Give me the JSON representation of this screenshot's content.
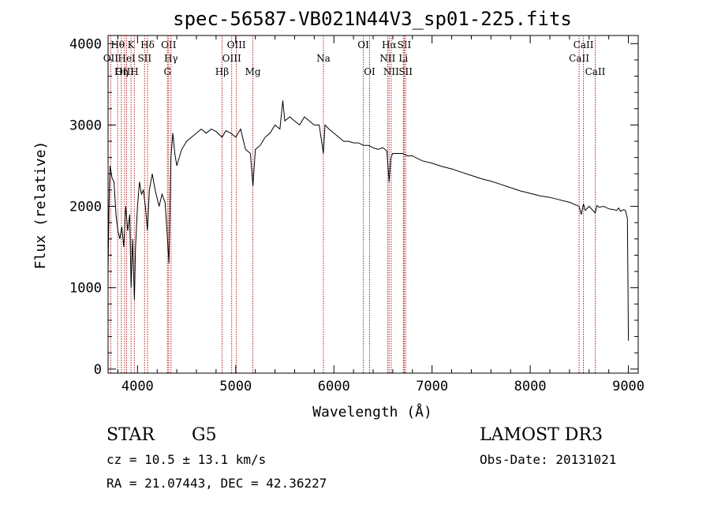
{
  "chart_data": {
    "type": "line",
    "title": "spec-56587-VB021N44V3_sp01-225.fits",
    "xlabel": "Wavelength (Å)",
    "ylabel": "Flux (relative)",
    "xlim": [
      3700,
      9100
    ],
    "ylim": [
      -50,
      4100
    ],
    "xticks": [
      4000,
      5000,
      6000,
      7000,
      8000,
      9000
    ],
    "yticks": [
      0,
      1000,
      2000,
      3000,
      4000
    ],
    "xtick_labels": [
      "4000",
      "5000",
      "6000",
      "7000",
      "8000",
      "9000"
    ],
    "ytick_labels": [
      "0",
      "1000",
      "2000",
      "3000",
      "4000"
    ],
    "series": [
      {
        "name": "spectrum",
        "x": [
          3700,
          3710,
          3720,
          3740,
          3760,
          3780,
          3800,
          3820,
          3840,
          3860,
          3880,
          3900,
          3920,
          3935,
          3950,
          3968,
          3980,
          4000,
          4020,
          4040,
          4060,
          4080,
          4101,
          4120,
          4150,
          4180,
          4200,
          4220,
          4250,
          4280,
          4300,
          4320,
          4340,
          4360,
          4380,
          4400,
          4450,
          4500,
          4550,
          4600,
          4650,
          4700,
          4750,
          4800,
          4861,
          4900,
          4950,
          5000,
          5050,
          5100,
          5150,
          5175,
          5200,
          5250,
          5300,
          5350,
          5400,
          5450,
          5480,
          5500,
          5550,
          5600,
          5650,
          5700,
          5750,
          5800,
          5850,
          5893,
          5910,
          5950,
          6000,
          6050,
          6100,
          6150,
          6200,
          6250,
          6300,
          6350,
          6400,
          6450,
          6500,
          6540,
          6563,
          6580,
          6600,
          6650,
          6700,
          6750,
          6800,
          6900,
          7000,
          7100,
          7200,
          7300,
          7400,
          7500,
          7600,
          7700,
          7800,
          7900,
          8000,
          8100,
          8200,
          8300,
          8400,
          8498,
          8520,
          8542,
          8560,
          8600,
          8662,
          8680,
          8700,
          8750,
          8800,
          8850,
          8880,
          8900,
          8920,
          8950,
          8970,
          8990,
          9000
        ],
        "y": [
          1200,
          2000,
          2500,
          2350,
          2300,
          1900,
          1700,
          1600,
          1750,
          1500,
          2000,
          1700,
          1900,
          1000,
          1600,
          850,
          1500,
          2000,
          2300,
          2150,
          2200,
          2000,
          1700,
          2200,
          2400,
          2200,
          2100,
          2000,
          2150,
          2050,
          1700,
          1300,
          2600,
          2900,
          2650,
          2500,
          2700,
          2800,
          2850,
          2900,
          2950,
          2900,
          2950,
          2920,
          2850,
          2930,
          2900,
          2850,
          2950,
          2700,
          2650,
          2250,
          2700,
          2750,
          2850,
          2900,
          3000,
          2950,
          3300,
          3050,
          3100,
          3050,
          3000,
          3100,
          3050,
          3000,
          3000,
          2650,
          3000,
          2950,
          2900,
          2850,
          2800,
          2800,
          2780,
          2780,
          2750,
          2750,
          2720,
          2700,
          2720,
          2680,
          2300,
          2600,
          2650,
          2650,
          2650,
          2620,
          2620,
          2560,
          2530,
          2490,
          2460,
          2420,
          2380,
          2340,
          2310,
          2270,
          2230,
          2190,
          2160,
          2130,
          2110,
          2080,
          2050,
          2000,
          1900,
          2030,
          1950,
          2000,
          1920,
          2010,
          1990,
          2000,
          1970,
          1960,
          1950,
          1980,
          1940,
          1960,
          1950,
          1850,
          350
        ]
      }
    ],
    "lines": [
      {
        "label": "Hθ",
        "wl": 3798,
        "row": 0
      },
      {
        "label": "OII",
        "wl": 3727,
        "row": 1
      },
      {
        "label": "OIII",
        "wl": 3869,
        "row": 2
      },
      {
        "label": "K",
        "wl": 3934,
        "row": 0
      },
      {
        "label": "HeI",
        "wl": 3889,
        "row": 1
      },
      {
        "label": "Hη",
        "wl": 3835,
        "row": 2
      },
      {
        "label": "Hδ",
        "wl": 4102,
        "row": 0
      },
      {
        "label": "SII",
        "wl": 4072,
        "row": 1
      },
      {
        "label": "H",
        "wl": 3968,
        "row": 2
      },
      {
        "label": "OII",
        "wl": 4317,
        "row": 0
      },
      {
        "label": "Hγ",
        "wl": 4341,
        "row": 1
      },
      {
        "label": "G",
        "wl": 4305,
        "row": 2
      },
      {
        "label": "OIII",
        "wl": 5007,
        "row": 0
      },
      {
        "label": "OIII",
        "wl": 4959,
        "row": 1
      },
      {
        "label": "Hβ",
        "wl": 4861,
        "row": 2
      },
      {
        "label": "Mg",
        "wl": 5175,
        "row": 2
      },
      {
        "label": "Na",
        "wl": 5893,
        "row": 1
      },
      {
        "label": "OI",
        "wl": 6300,
        "row": 0
      },
      {
        "label": "OI",
        "wl": 6364,
        "row": 2
      },
      {
        "label": "Hα",
        "wl": 6563,
        "row": 0
      },
      {
        "label": "NII",
        "wl": 6548,
        "row": 1
      },
      {
        "label": "NII",
        "wl": 6584,
        "row": 2
      },
      {
        "label": "SII",
        "wl": 6717,
        "row": 0
      },
      {
        "label": "Li",
        "wl": 6708,
        "row": 1
      },
      {
        "label": "SII",
        "wl": 6731,
        "row": 2
      },
      {
        "label": "CaII",
        "wl": 8542,
        "row": 0
      },
      {
        "label": "CaII",
        "wl": 8498,
        "row": 1
      },
      {
        "label": "CaII",
        "wl": 8662,
        "row": 2
      }
    ]
  },
  "info": {
    "class": "STAR",
    "subclass": "G5",
    "release": "LAMOST DR3",
    "cz": "cz = 10.5 ± 13.1 km/s",
    "obsdate": "Obs-Date: 20131021",
    "radec": "RA =  21.07443, DEC =  42.36227"
  },
  "colors": {
    "line_marker": "#b22222",
    "spectrum": "#000000"
  }
}
